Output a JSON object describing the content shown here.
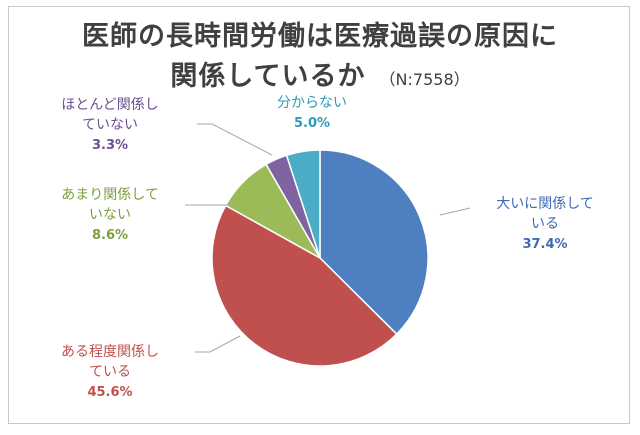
{
  "chart_data": {
    "type": "pie",
    "title_line1": "医師の長時間労働は医療過誤の原因に",
    "title_line2": "関係しているか",
    "sample_size": "（N:7558）",
    "start_angle_deg": 0,
    "direction": "clockwise",
    "slices": [
      {
        "label_lines": [
          "大いに関係して",
          "いる"
        ],
        "value": 37.4,
        "value_text": "37.4%",
        "color": "#4e7fc0",
        "label_color": "#3d6bb3"
      },
      {
        "label_lines": [
          "ある程度関係し",
          "ている"
        ],
        "value": 45.6,
        "value_text": "45.6%",
        "color": "#c0504d",
        "label_color": "#c0504d"
      },
      {
        "label_lines": [
          "あまり関係して",
          "いない"
        ],
        "value": 8.6,
        "value_text": "8.6%",
        "color": "#9bbb59",
        "label_color": "#7f9f3f"
      },
      {
        "label_lines": [
          "ほとんど関係し",
          "ていない"
        ],
        "value": 3.3,
        "value_text": "3.3%",
        "color": "#8064a2",
        "label_color": "#6c4f91"
      },
      {
        "label_lines": [
          "分からない"
        ],
        "value": 5.0,
        "value_text": "5.0%",
        "color": "#4bacc6",
        "label_color": "#2f9ab8"
      }
    ]
  }
}
